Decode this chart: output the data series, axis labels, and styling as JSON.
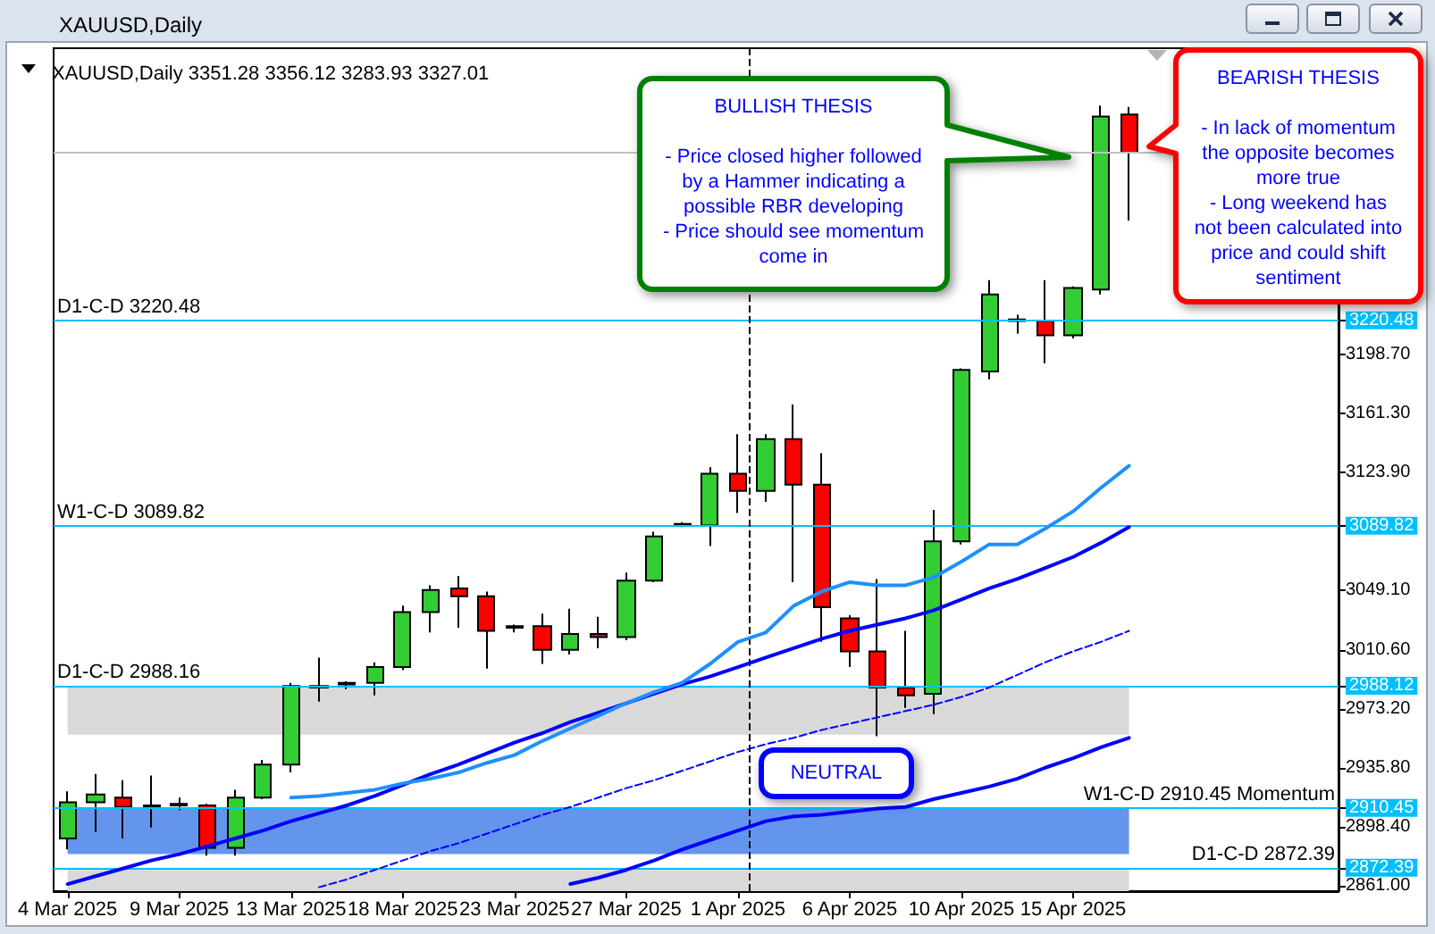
{
  "chart_data": {
    "type": "candlestick",
    "title": "XAUUSD,Daily",
    "subtitle": "XAUUSD,Daily 3351.28 3356.12 3283.93 3327.01",
    "categories": [
      "4 Mar 2025",
      null,
      null,
      null,
      "9 Mar 2025",
      null,
      null,
      null,
      "13 Mar 2025",
      null,
      null,
      null,
      "18 Mar 2025",
      null,
      null,
      null,
      "23 Mar 2025",
      null,
      null,
      null,
      "27 Mar 2025",
      null,
      null,
      null,
      "1 Apr 2025",
      null,
      null,
      null,
      "6 Apr 2025",
      null,
      null,
      null,
      "10 Apr 2025",
      null,
      null,
      null,
      "15 Apr 2025",
      null,
      null
    ],
    "ohlc": [
      [
        2891,
        2921,
        2884,
        2914
      ],
      [
        2914,
        2932,
        2895,
        2919
      ],
      [
        2917,
        2928,
        2891,
        2911
      ],
      [
        2911,
        2931,
        2898,
        2912
      ],
      [
        2913,
        2917,
        2909,
        2912
      ],
      [
        2912,
        2913,
        2880,
        2885
      ],
      [
        2885,
        2922,
        2880,
        2917
      ],
      [
        2917,
        2941,
        2916,
        2938
      ],
      [
        2938,
        2990,
        2933,
        2988
      ],
      [
        2987,
        3006,
        2978,
        2988
      ],
      [
        2989,
        2991,
        2986,
        2990
      ],
      [
        2990,
        3003,
        2982,
        3000
      ],
      [
        3000,
        3039,
        2998,
        3035
      ],
      [
        3035,
        3052,
        3022,
        3049
      ],
      [
        3050,
        3058,
        3025,
        3045
      ],
      [
        3045,
        3048,
        2999,
        3023
      ],
      [
        3026,
        3027,
        3022,
        3025
      ],
      [
        3026,
        3034,
        3002,
        3011
      ],
      [
        3011,
        3037,
        3008,
        3021
      ],
      [
        3021,
        3032,
        3012,
        3019
      ],
      [
        3019,
        3060,
        3017,
        3055
      ],
      [
        3055,
        3086,
        3054,
        3083
      ],
      [
        3090,
        3092,
        3089,
        3091
      ],
      [
        3090,
        3127,
        3077,
        3123
      ],
      [
        3123,
        3148,
        3098,
        3112
      ],
      [
        3112,
        3148,
        3105,
        3145
      ],
      [
        3145,
        3167,
        3054,
        3116
      ],
      [
        3116,
        3136,
        3016,
        3038
      ],
      [
        3031,
        3033,
        3000,
        3010
      ],
      [
        3010,
        3056,
        2956,
        2987
      ],
      [
        2987,
        3023,
        2974,
        2982
      ],
      [
        2983,
        3100,
        2970,
        3080
      ],
      [
        3080,
        3190,
        3078,
        3189
      ],
      [
        3188,
        3246,
        3183,
        3237
      ],
      [
        3220,
        3224,
        3212,
        3221
      ],
      [
        3220,
        3246,
        3193,
        3211
      ],
      [
        3211,
        3242,
        3209,
        3241
      ],
      [
        3240,
        3357,
        3237,
        3350
      ],
      [
        3351.28,
        3356.12,
        3283.93,
        3327.01
      ]
    ],
    "colors": [
      "#32cd32",
      "#32cd32",
      "#ff0000",
      "#32cd32",
      "#ff0000",
      "#ff0000",
      "#32cd32",
      "#32cd32",
      "#32cd32",
      "#32cd32",
      "#32cd32",
      "#32cd32",
      "#32cd32",
      "#32cd32",
      "#ff0000",
      "#ff0000",
      "#ff0000",
      "#ff0000",
      "#32cd32",
      "#ff0000",
      "#32cd32",
      "#32cd32",
      "#32cd32",
      "#32cd32",
      "#ff0000",
      "#32cd32",
      "#ff0000",
      "#ff0000",
      "#ff0000",
      "#ff0000",
      "#ff0000",
      "#32cd32",
      "#32cd32",
      "#32cd32",
      "#32cd32",
      "#ff0000",
      "#32cd32",
      "#32cd32",
      "#ff0000"
    ],
    "series": [
      {
        "type": "line",
        "color": "#0000ff",
        "values": [
          2862,
          2867,
          2872,
          2877,
          2881,
          2886,
          2891,
          2896,
          2902,
          2907,
          2912,
          2918,
          2925,
          2932,
          2938,
          2945,
          2952,
          2958,
          2965,
          2971,
          2977,
          2983,
          2989,
          2994,
          3000,
          3006,
          3012,
          3018,
          3023,
          3027,
          3031,
          3036,
          3043,
          3050,
          3056,
          3063,
          3070,
          3079,
          3089
        ]
      },
      {
        "type": "line",
        "color": "#0000ff",
        "values": [
          null,
          null,
          null,
          null,
          null,
          null,
          null,
          null,
          null,
          null,
          null,
          null,
          null,
          null,
          null,
          null,
          null,
          null,
          2862,
          2866,
          2871,
          2877,
          2884,
          2890,
          2896,
          2902,
          2905,
          2906,
          2908,
          2910,
          2911,
          2916,
          2920,
          2924,
          2929,
          2936,
          2942,
          2949,
          2955
        ]
      },
      {
        "type": "line",
        "color": "#1e90ff",
        "values": [
          null,
          null,
          null,
          null,
          null,
          null,
          null,
          null,
          2917,
          2918,
          2920,
          2922,
          2926,
          2929,
          2933,
          2939,
          2944,
          2953,
          2961,
          2969,
          2977,
          2984,
          2990,
          3002,
          3016,
          3022,
          3039,
          3048,
          3054,
          3052,
          3052,
          3057,
          3067,
          3078,
          3078,
          3088,
          3099,
          3114,
          3128
        ]
      },
      {
        "type": "line",
        "color": "#0000ff",
        "line_style": "dashed",
        "values": [
          null,
          null,
          null,
          null,
          null,
          null,
          null,
          null,
          null,
          2860,
          2865,
          2871,
          2877,
          2883,
          2888,
          2894,
          2900,
          2906,
          2911,
          2917,
          2923,
          2928,
          2934,
          2940,
          2946,
          2951,
          2955,
          2960,
          2964,
          2968,
          2972,
          2976,
          2981,
          2987,
          2995,
          3003,
          3010,
          3016,
          3023
        ]
      }
    ],
    "ylim": [
      2857.5,
      3393.5
    ],
    "yticks": [
      {
        "value": 2861,
        "label": "2861.00"
      },
      2872.39,
      {
        "value": 2898.4,
        "label": "2898.40"
      },
      2910.45,
      {
        "value": 2935.8,
        "label": "2935.80"
      },
      {
        "value": 2973.2,
        "label": "2973.20"
      },
      2988.12,
      {
        "value": 3010.6,
        "label": "3010.60"
      },
      {
        "value": 3049.1,
        "label": "3049.10"
      },
      3089.82,
      {
        "value": 3123.9,
        "label": "3123.90"
      },
      {
        "value": 3161.3,
        "label": "3161.30"
      },
      {
        "value": 3198.7,
        "label": "3198.70"
      },
      3220.48
    ],
    "ref_lines": [
      {
        "axis": "y",
        "value": 3220.48,
        "label": "D1-C-D 3220.48",
        "color": "#00bfff"
      },
      {
        "axis": "y",
        "value": 3089.82,
        "label": "W1-C-D 3089.82",
        "color": "#00bfff"
      },
      {
        "axis": "y",
        "value": 2988.12,
        "label": "D1-C-D 2988.16",
        "color": "#00bfff"
      },
      {
        "axis": "y",
        "value": 2910.45,
        "label": "W1-C-D 2910.45 Momentum",
        "color": "#00bfff"
      },
      {
        "axis": "y",
        "value": 2872.39,
        "label": "D1-C-D 2872.39",
        "color": "#00bfff"
      },
      {
        "axis": "y",
        "value": 3327.01,
        "color": "#c0c0c0"
      },
      {
        "axis": "x",
        "value": "1 Apr 2025",
        "color": "#000000",
        "line_style": "dashed"
      }
    ],
    "bands": [
      {
        "axis": "y",
        "from": 2881,
        "to": 2910.45,
        "color": "#6495ed"
      },
      {
        "axis": "y",
        "from": 2857.5,
        "to": 2872.39,
        "color": "#d9d9d9"
      },
      {
        "axis": "y",
        "from": 2957,
        "to": 2988.12,
        "color": "#d9d9d9"
      }
    ],
    "annotations": [
      "BULLISH THESIS\n\n- Price closed higher followed\nby a Hammer indicating a\npossible RBR developing\n- Price should see momentum\ncome in",
      "BEARISH THESIS\n\n- In lack of momentum\nthe opposite becomes\nmore true\n- Long weekend has\nnot been calculated into\nprice and could shift\nsentiment",
      "NEUTRAL"
    ]
  }
}
